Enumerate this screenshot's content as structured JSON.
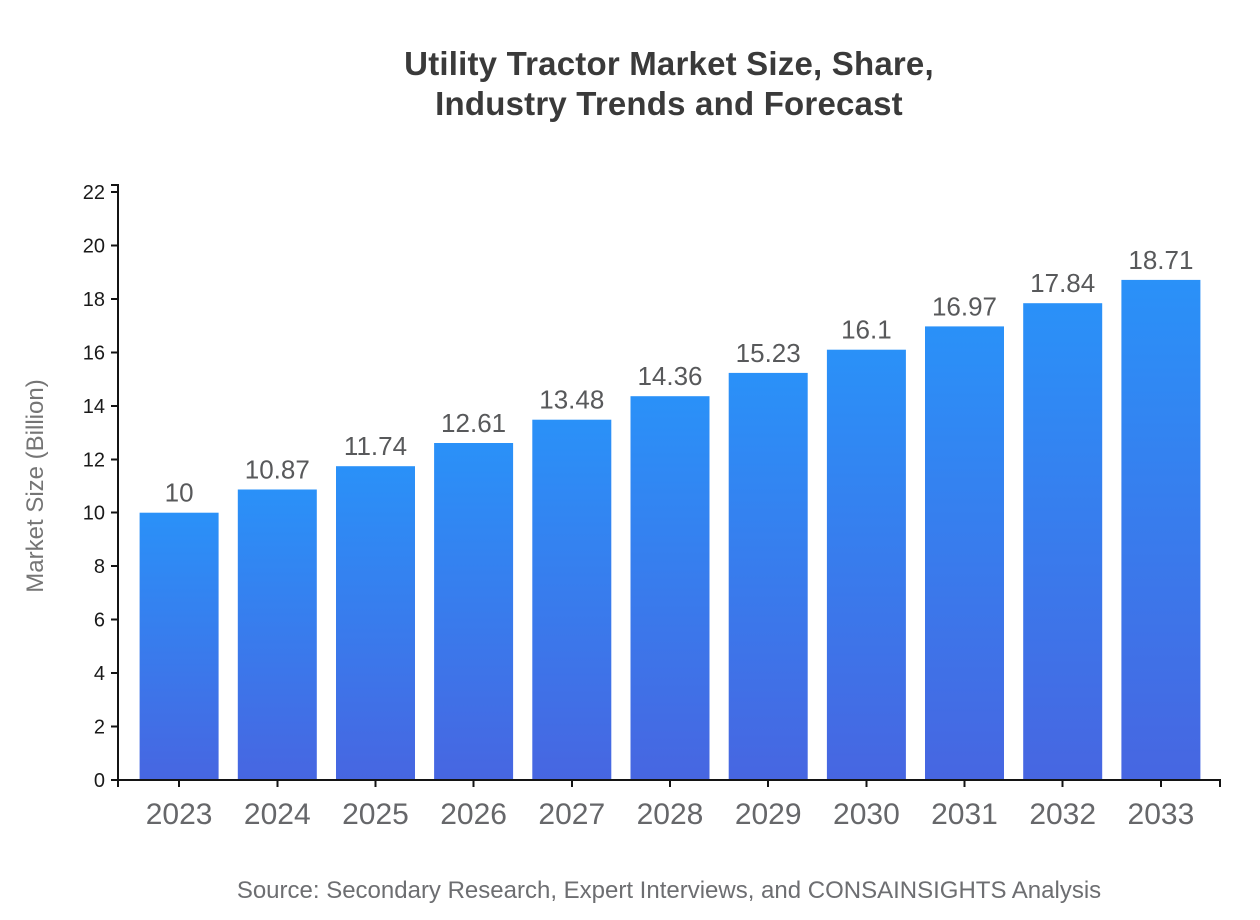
{
  "title": {
    "line1": "Utility Tractor Market Size, Share,",
    "line2": "Industry Trends and Forecast"
  },
  "source_note": "Source: Secondary Research, Expert Interviews, and CONSAINSIGHTS Analysis",
  "chart_data": {
    "type": "bar",
    "title": "Utility Tractor Market Size, Share, Industry Trends and Forecast",
    "categories": [
      "2023",
      "2024",
      "2025",
      "2026",
      "2027",
      "2028",
      "2029",
      "2030",
      "2031",
      "2032",
      "2033"
    ],
    "values": [
      10,
      10.87,
      11.74,
      12.61,
      13.48,
      14.36,
      15.23,
      16.1,
      16.97,
      17.84,
      18.71
    ],
    "xlabel": "",
    "ylabel": "Market Size (Billion)",
    "ylim": [
      0,
      22
    ],
    "yticks": [
      0,
      2,
      4,
      6,
      8,
      10,
      12,
      14,
      16,
      18,
      20,
      22
    ],
    "grid": false,
    "legend": false,
    "value_labels_shown": true,
    "bar_gradient_top": "#2a91f8",
    "bar_gradient_bottom": "#4766e1"
  },
  "colors": {
    "background": "#ffffff",
    "title_text": "#3a3a3a",
    "axis_line": "#141414",
    "y_tick_label": "#1a1a1a",
    "x_tick_label": "#66676a",
    "value_label": "#58595b",
    "y_axis_title": "#757575",
    "source_text": "#6d6e71"
  }
}
